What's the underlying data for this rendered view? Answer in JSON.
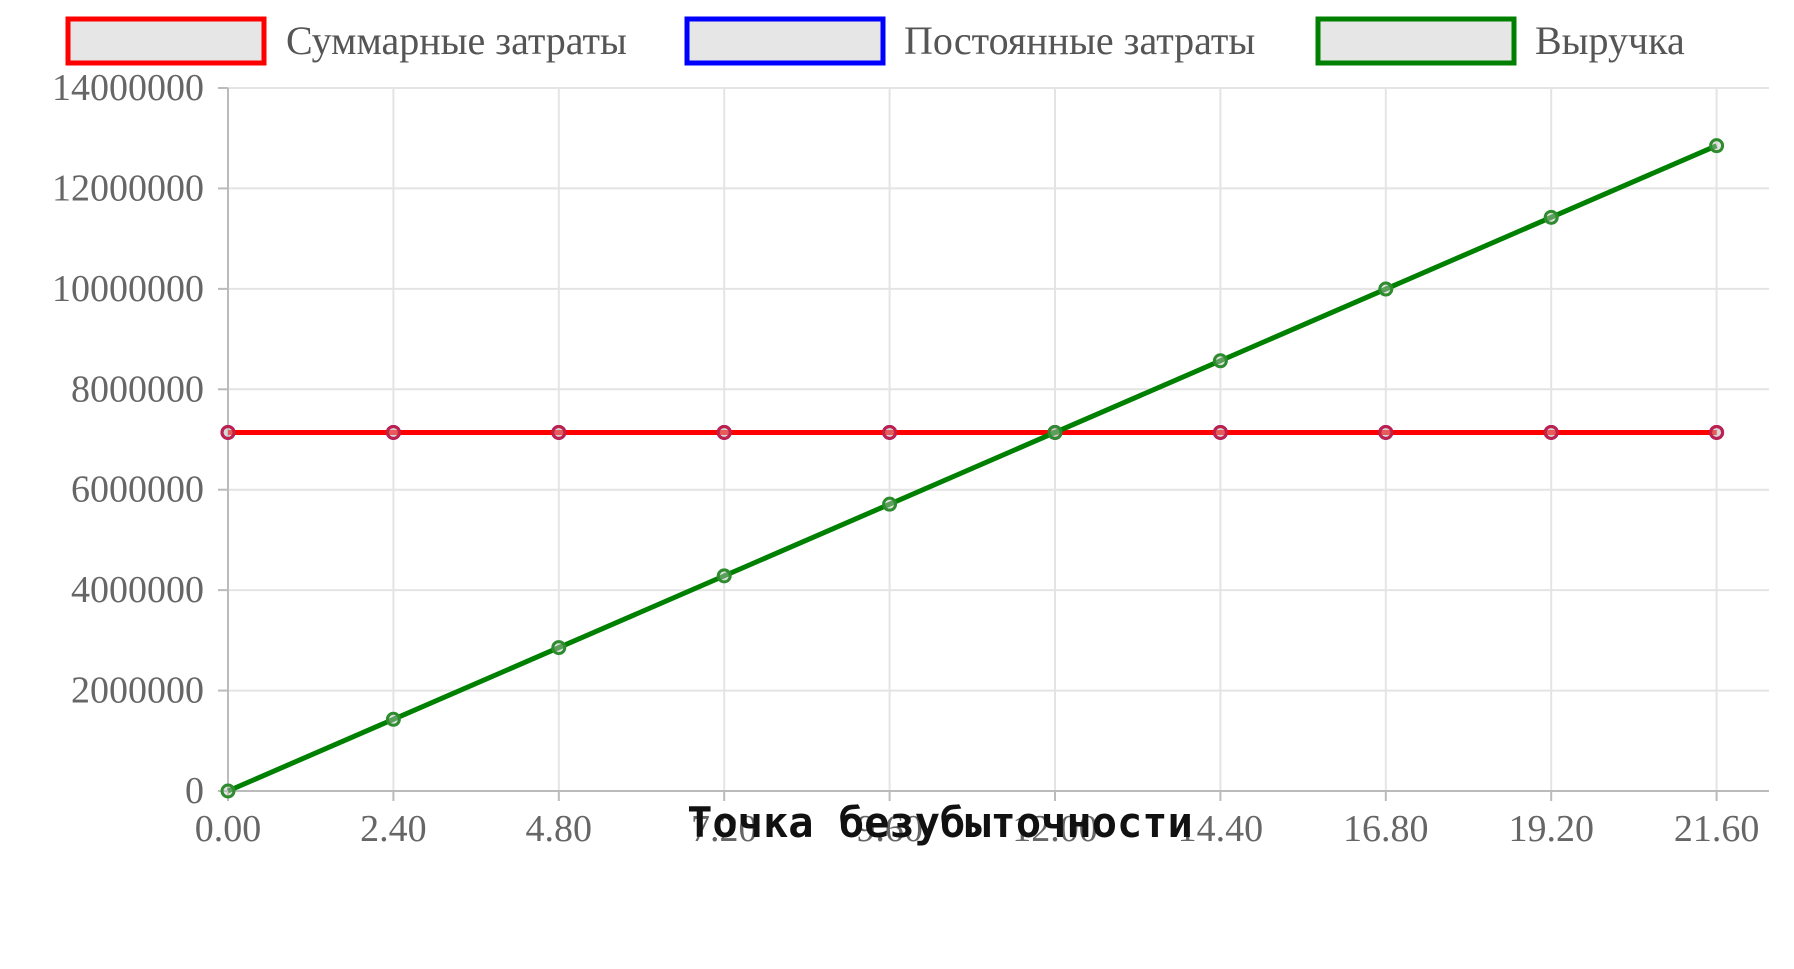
{
  "chart_data": {
    "type": "line",
    "caption": "Точка безубыточности",
    "xlabel": "",
    "ylabel": "",
    "x_categories": [
      "0.00",
      "2.40",
      "4.80",
      "7.20",
      "9.60",
      "12.00",
      "14.40",
      "16.80",
      "19.20",
      "21.60"
    ],
    "y_ticks": [
      "0",
      "2000000",
      "4000000",
      "6000000",
      "8000000",
      "10000000",
      "12000000",
      "14000000"
    ],
    "ylim": [
      0,
      14000000
    ],
    "grid": true,
    "legend_position": "top",
    "series": [
      {
        "name": "Суммарные затраты",
        "color": "#ff0000",
        "values": [
          7140000,
          7140000,
          7140000,
          7140000,
          7140000,
          7140000,
          7140000,
          7140000,
          7140000,
          7140000
        ]
      },
      {
        "name": "Постоянные затраты",
        "color": "#0000ff",
        "values": [
          7140000,
          7140000,
          7140000,
          7140000,
          7140000,
          7140000,
          7140000,
          7140000,
          7140000,
          7140000
        ]
      },
      {
        "name": "Выручка",
        "color": "#008000",
        "values": [
          0,
          1428000,
          2856000,
          4284000,
          5712000,
          7140000,
          8568000,
          9996000,
          11424000,
          12852000
        ]
      }
    ]
  }
}
